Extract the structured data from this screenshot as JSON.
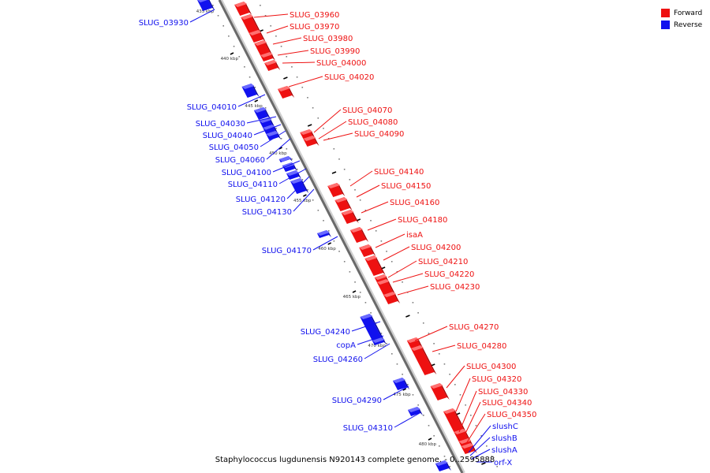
{
  "legend": {
    "forward_label": "Forward",
    "reverse_label": "Reverse",
    "forward_color": "#ee1111",
    "reverse_color": "#1111ee"
  },
  "caption": "Staphylococcus lugdunensis N920143 complete genome. - 0..2595888",
  "ticks": [
    "435 kbp",
    "440 kbp",
    "445 kbp",
    "450 kbp",
    "455 kbp",
    "460 kbp",
    "465 kbp",
    "470 kbp",
    "475 kbp",
    "480 kbp"
  ],
  "forward_genes": [
    "SLUG_03960",
    "SLUG_03970",
    "SLUG_03980",
    "SLUG_03990",
    "SLUG_04000",
    "SLUG_04020",
    "SLUG_04070",
    "SLUG_04080",
    "SLUG_04090",
    "SLUG_04140",
    "SLUG_04150",
    "SLUG_04160",
    "SLUG_04180",
    "isaA",
    "SLUG_04200",
    "SLUG_04210",
    "SLUG_04220",
    "SLUG_04230",
    "SLUG_04270",
    "SLUG_04280",
    "SLUG_04300",
    "SLUG_04320",
    "SLUG_04330",
    "SLUG_04340",
    "SLUG_04350"
  ],
  "reverse_genes": [
    "SLUG_03930",
    "SLUG_04010",
    "SLUG_04030",
    "SLUG_04040",
    "SLUG_04050",
    "SLUG_04060",
    "SLUG_04100",
    "SLUG_04110",
    "SLUG_04120",
    "SLUG_04130",
    "SLUG_04170",
    "SLUG_04240",
    "copA",
    "SLUG_04260",
    "SLUG_04290",
    "SLUG_04310",
    "slushC",
    "slushB",
    "slushA",
    "orf-X"
  ]
}
